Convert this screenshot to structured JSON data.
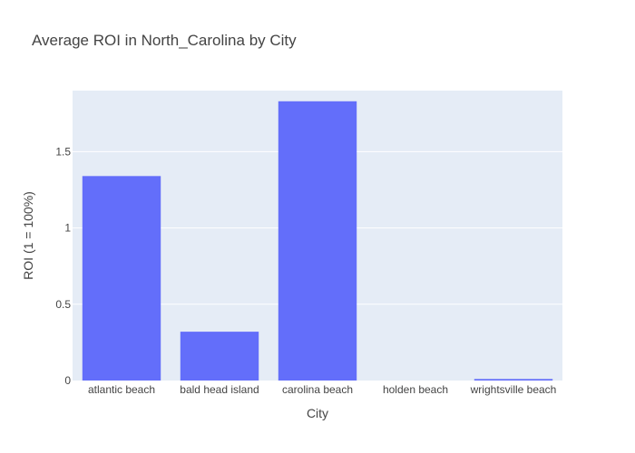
{
  "chart_data": {
    "type": "bar",
    "title": "Average ROI in North_Carolina by City",
    "xlabel": "City",
    "ylabel": "ROI (1 = 100%)",
    "categories": [
      "atlantic beach",
      "bald head island",
      "carolina beach",
      "holden beach",
      "wrightsville beach"
    ],
    "values": [
      1.34,
      0.32,
      1.83,
      0.0,
      0.01
    ],
    "ylim": [
      0,
      1.9
    ],
    "yticks": [
      0,
      0.5,
      1,
      1.5
    ],
    "ytick_labels": [
      "0",
      "0.5",
      "1",
      "1.5"
    ],
    "grid": true,
    "colors": {
      "bar": "#636efa",
      "plot_bg": "#e5ecf6",
      "grid": "#ffffff",
      "text": "#444444"
    }
  }
}
